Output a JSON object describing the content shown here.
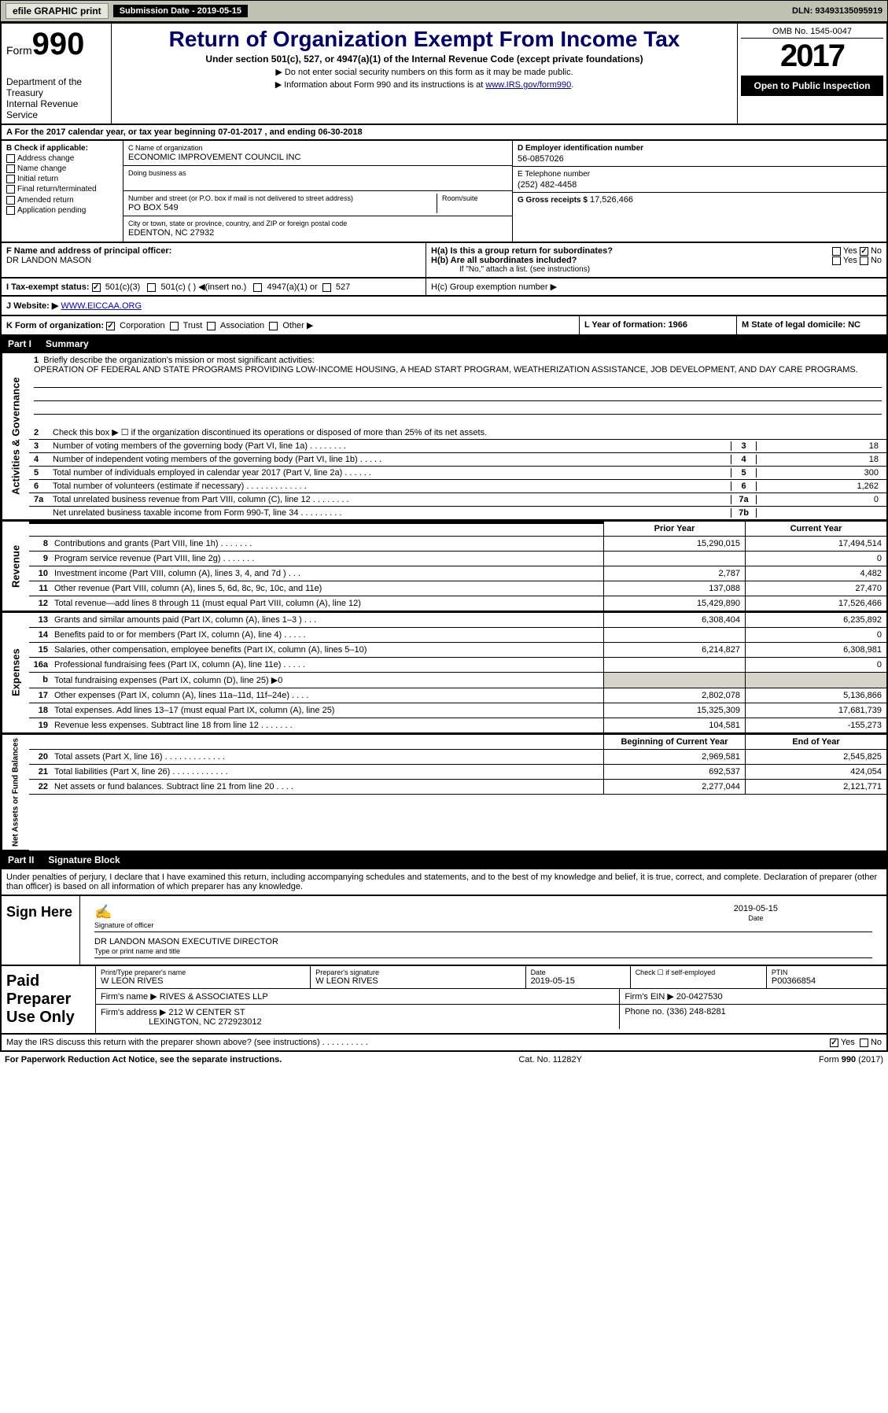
{
  "topbar": {
    "efile_label": "efile GRAPHIC print",
    "submission_label": "Submission Date - 2019-05-15",
    "dln_label": "DLN: 93493135095919"
  },
  "header": {
    "form_prefix": "Form",
    "form_number": "990",
    "dept1": "Department of the Treasury",
    "dept2": "Internal Revenue Service",
    "title": "Return of Organization Exempt From Income Tax",
    "subtitle": "Under section 501(c), 527, or 4947(a)(1) of the Internal Revenue Code (except private foundations)",
    "note1": "▶ Do not enter social security numbers on this form as it may be made public.",
    "note2_pre": "▶ Information about Form 990 and its instructions is at ",
    "note2_link": "www.IRS.gov/form990",
    "note2_post": ".",
    "omb": "OMB No. 1545-0047",
    "taxyear": "2017",
    "open_public": "Open to Public Inspection"
  },
  "sectA": "A For the 2017 calendar year, or tax year beginning 07-01-2017    , and ending 06-30-2018",
  "blockB": {
    "label": "B Check if applicable:",
    "items": [
      "Address change",
      "Name change",
      "Initial return",
      "Final return/terminated",
      "Amended return",
      "Application pending"
    ]
  },
  "blockC": {
    "c_label": "C Name of organization",
    "org_name": "ECONOMIC IMPROVEMENT COUNCIL INC",
    "dba_label": "Doing business as",
    "addr_label": "Number and street (or P.O. box if mail is not delivered to street address)",
    "room_label": "Room/suite",
    "addr": "PO BOX 549",
    "city_label": "City or town, state or province, country, and ZIP or foreign postal code",
    "city": "EDENTON, NC  27932"
  },
  "blockD": {
    "d_label": "D Employer identification number",
    "ein": "56-0857026",
    "e_label": "E Telephone number",
    "phone": "(252) 482-4458",
    "g_label": "G Gross receipts $",
    "g_val": "17,526,466"
  },
  "rowF": {
    "label": "F  Name and address of principal officer:",
    "name": "DR LANDON MASON"
  },
  "rowH": {
    "ha": "H(a)  Is this a group return for subordinates?",
    "hb": "H(b)  Are all subordinates included?",
    "hb_note": "If \"No,\" attach a list. (see instructions)",
    "hc": "H(c)  Group exemption number ▶",
    "yes": "Yes",
    "no": "No"
  },
  "rowI": {
    "label": "I  Tax-exempt status:",
    "opt1": "501(c)(3)",
    "opt2": "501(c) (   ) ◀(insert no.)",
    "opt3": "4947(a)(1) or",
    "opt4": "527"
  },
  "rowJ": {
    "label": "J  Website: ▶",
    "url": "WWW.EICCAA.ORG"
  },
  "rowK": {
    "label": "K Form of organization:",
    "corp": "Corporation",
    "trust": "Trust",
    "assoc": "Association",
    "other": "Other ▶",
    "L": "L Year of formation: 1966",
    "M": "M State of legal domicile: NC"
  },
  "partI": {
    "partno": "Part I",
    "partname": "Summary",
    "section1": {
      "num": "1",
      "label": "Briefly describe the organization's mission or most significant activities:",
      "mission": "OPERATION OF FEDERAL AND STATE PROGRAMS PROVIDING LOW-INCOME HOUSING, A HEAD START PROGRAM, WEATHERIZATION ASSISTANCE, JOB DEVELOPMENT, AND DAY CARE PROGRAMS."
    },
    "rows_gov": [
      {
        "n": "2",
        "t": "Check this box ▶ ☐  if the organization discontinued its operations or disposed of more than 25% of its net assets."
      },
      {
        "n": "3",
        "t": "Number of voting members of the governing body (Part VI, line 1a)   .   .   .   .   .   .   .   .",
        "cell": "3",
        "val": "18"
      },
      {
        "n": "4",
        "t": "Number of independent voting members of the governing body (Part VI, line 1b)   .   .   .   .   .",
        "cell": "4",
        "val": "18"
      },
      {
        "n": "5",
        "t": "Total number of individuals employed in calendar year 2017 (Part V, line 2a)   .   .   .   .   .   .",
        "cell": "5",
        "val": "300"
      },
      {
        "n": "6",
        "t": "Total number of volunteers (estimate if necessary)   .   .   .   .   .   .   .   .   .   .   .   .   .",
        "cell": "6",
        "val": "1,262"
      },
      {
        "n": "7a",
        "t": "Total unrelated business revenue from Part VIII, column (C), line 12   .   .   .   .   .   .   .   .",
        "cell": "7a",
        "val": "0"
      },
      {
        "n": "",
        "t": "Net unrelated business taxable income from Form 990-T, line 34   .   .   .   .   .   .   .   .   .",
        "cell": "7b",
        "val": ""
      }
    ],
    "fin_hdr": {
      "prior": "Prior Year",
      "current": "Current Year"
    },
    "revenue": [
      {
        "n": "8",
        "t": "Contributions and grants (Part VIII, line 1h)   .   .   .   .   .   .   .",
        "p": "15,290,015",
        "c": "17,494,514"
      },
      {
        "n": "9",
        "t": "Program service revenue (Part VIII, line 2g)   .   .   .   .   .   .   .",
        "p": "",
        "c": "0"
      },
      {
        "n": "10",
        "t": "Investment income (Part VIII, column (A), lines 3, 4, and 7d )   .   .   .",
        "p": "2,787",
        "c": "4,482"
      },
      {
        "n": "11",
        "t": "Other revenue (Part VIII, column (A), lines 5, 6d, 8c, 9c, 10c, and 11e)",
        "p": "137,088",
        "c": "27,470"
      },
      {
        "n": "12",
        "t": "Total revenue—add lines 8 through 11 (must equal Part VIII, column (A), line 12)",
        "p": "15,429,890",
        "c": "17,526,466"
      }
    ],
    "expenses": [
      {
        "n": "13",
        "t": "Grants and similar amounts paid (Part IX, column (A), lines 1–3 )   .   .   .",
        "p": "6,308,404",
        "c": "6,235,892"
      },
      {
        "n": "14",
        "t": "Benefits paid to or for members (Part IX, column (A), line 4)   .   .   .   .   .",
        "p": "",
        "c": "0"
      },
      {
        "n": "15",
        "t": "Salaries, other compensation, employee benefits (Part IX, column (A), lines 5–10)",
        "p": "6,214,827",
        "c": "6,308,981"
      },
      {
        "n": "16a",
        "t": "Professional fundraising fees (Part IX, column (A), line 11e)   .   .   .   .   .",
        "p": "",
        "c": "0"
      },
      {
        "n": "b",
        "t": "Total fundraising expenses (Part IX, column (D), line 25) ▶0",
        "p": "",
        "c": "",
        "shade": true
      },
      {
        "n": "17",
        "t": "Other expenses (Part IX, column (A), lines 11a–11d, 11f–24e)   .   .   .   .",
        "p": "2,802,078",
        "c": "5,136,866"
      },
      {
        "n": "18",
        "t": "Total expenses. Add lines 13–17 (must equal Part IX, column (A), line 25)",
        "p": "15,325,309",
        "c": "17,681,739"
      },
      {
        "n": "19",
        "t": "Revenue less expenses. Subtract line 18 from line 12   .   .   .   .   .   .   .",
        "p": "104,581",
        "c": "-155,273"
      }
    ],
    "net_hdr": {
      "b": "Beginning of Current Year",
      "e": "End of Year"
    },
    "net": [
      {
        "n": "20",
        "t": "Total assets (Part X, line 16)   .   .   .   .   .   .   .   .   .   .   .   .   .",
        "p": "2,969,581",
        "c": "2,545,825"
      },
      {
        "n": "21",
        "t": "Total liabilities (Part X, line 26)   .   .   .   .   .   .   .   .   .   .   .   .",
        "p": "692,537",
        "c": "424,054"
      },
      {
        "n": "22",
        "t": "Net assets or fund balances. Subtract line 21 from line 20   .   .   .   .",
        "p": "2,277,044",
        "c": "2,121,771"
      }
    ],
    "vlabels": {
      "gov": "Activities & Governance",
      "rev": "Revenue",
      "exp": "Expenses",
      "net": "Net Assets or Fund Balances"
    }
  },
  "partII": {
    "partno": "Part II",
    "partname": "Signature Block",
    "perjury": "Under penalties of perjury, I declare that I have examined this return, including accompanying schedules and statements, and to the best of my knowledge and belief, it is true, correct, and complete. Declaration of preparer (other than officer) is based on all information of which preparer has any knowledge.",
    "sign_here": "Sign Here",
    "sig_officer_lbl": "Signature of officer",
    "sig_date": "2019-05-15",
    "sig_date_lbl": "Date",
    "officer_name": "DR LANDON MASON  EXECUTIVE DIRECTOR",
    "officer_name_lbl": "Type or print name and title",
    "paid_prep": "Paid Preparer Use Only",
    "prep_name_lbl": "Print/Type preparer's name",
    "prep_name": "W LEON RIVES",
    "prep_sig_lbl": "Preparer's signature",
    "prep_sig": "W LEON RIVES",
    "prep_date_lbl": "Date",
    "prep_date": "2019-05-15",
    "prep_self_lbl": "Check ☐ if self-employed",
    "ptin_lbl": "PTIN",
    "ptin": "P00366854",
    "firm_name_lbl": "Firm's name     ▶",
    "firm_name": "RIVES & ASSOCIATES LLP",
    "firm_ein_lbl": "Firm's EIN ▶",
    "firm_ein": "20-0427530",
    "firm_addr_lbl": "Firm's address ▶",
    "firm_addr1": "212 W CENTER ST",
    "firm_addr2": "LEXINGTON, NC  272923012",
    "firm_phone_lbl": "Phone no.",
    "firm_phone": "(336) 248-8281",
    "discuss": "May the IRS discuss this return with the preparer shown above? (see instructions)   .   .   .   .   .   .   .   .   .   .",
    "yes": "Yes",
    "no": "No"
  },
  "footer": {
    "pra": "For Paperwork Reduction Act Notice, see the separate instructions.",
    "cat": "Cat. No. 11282Y",
    "form": "Form 990 (2017)"
  }
}
